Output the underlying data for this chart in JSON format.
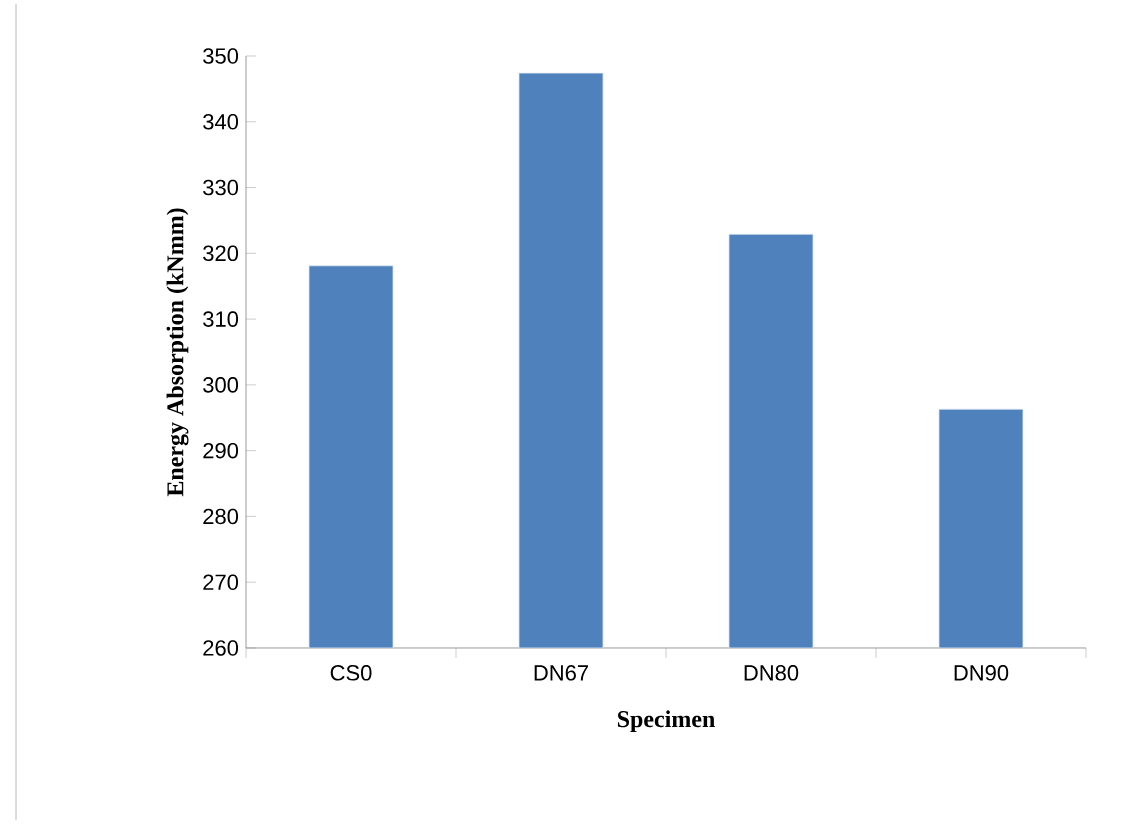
{
  "chart_data": {
    "type": "bar",
    "xlabel": "Specimen",
    "ylabel": "Energy Absorption (kNmm)",
    "categories": [
      "CS0",
      "DN67",
      "DN80",
      "DN90"
    ],
    "values": [
      318.1,
      347.4,
      322.9,
      296.3
    ],
    "color": "#4f81bd",
    "ylim": [
      260,
      350
    ],
    "yticks": [
      260,
      270,
      280,
      290,
      300,
      310,
      320,
      330,
      340,
      350
    ],
    "grid": false
  }
}
